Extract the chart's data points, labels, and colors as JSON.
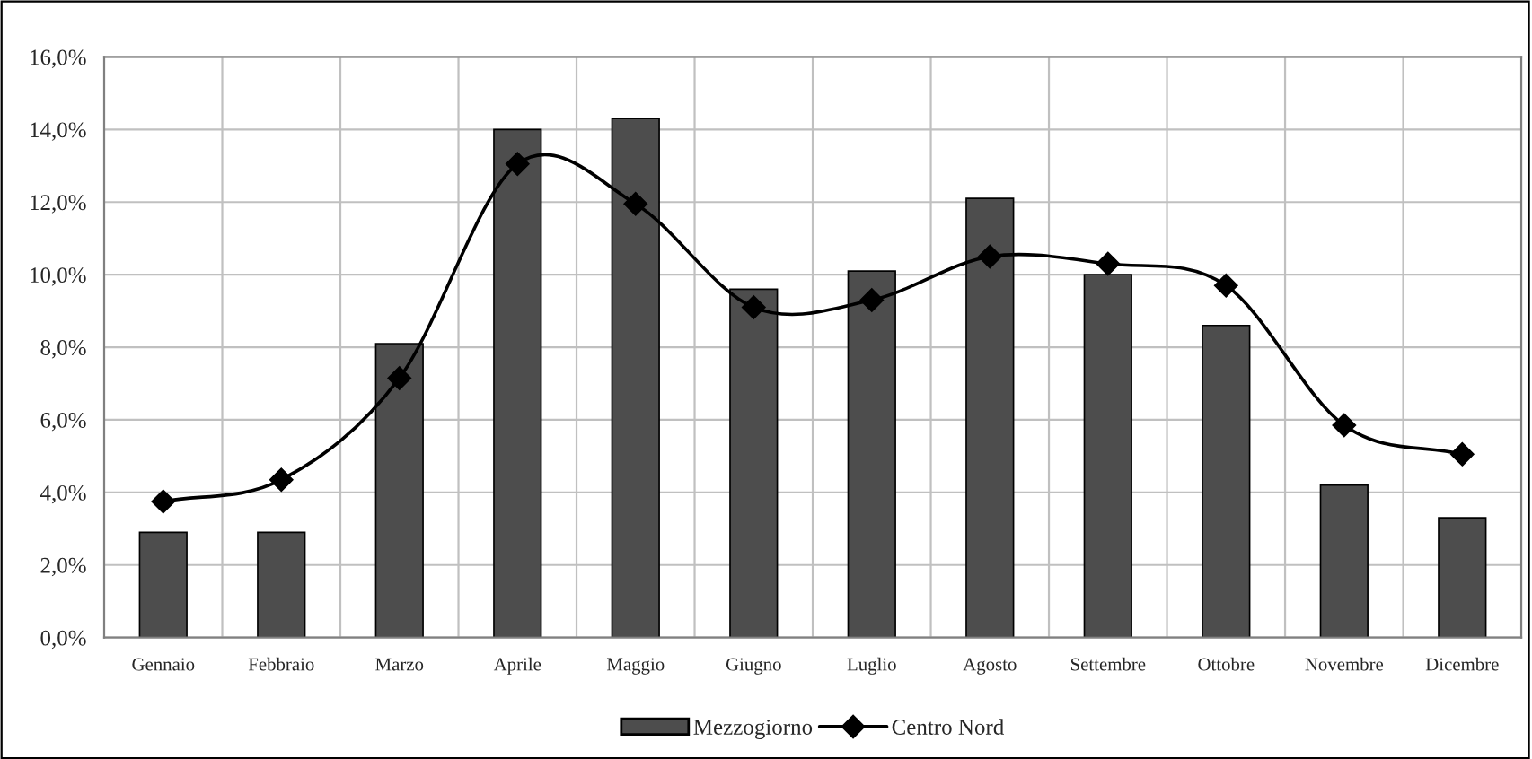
{
  "chart_data": {
    "type": "bar",
    "categories": [
      "Gennaio",
      "Febbraio",
      "Marzo",
      "Aprile",
      "Maggio",
      "Giugno",
      "Luglio",
      "Agosto",
      "Settembre",
      "Ottobre",
      "Novembre",
      "Dicembre"
    ],
    "series": [
      {
        "name": "Mezzogiorno",
        "color": "#4d4d4d",
        "values": [
          2.9,
          2.9,
          8.1,
          14.0,
          14.3,
          9.6,
          10.1,
          12.1,
          10.0,
          8.6,
          4.2,
          3.3
        ]
      },
      {
        "name": "Centro Nord",
        "type": "line",
        "color": "#000000",
        "marker": "diamond",
        "values": [
          3.75,
          4.35,
          7.15,
          13.05,
          11.95,
          9.1,
          9.3,
          10.5,
          10.3,
          9.7,
          5.85,
          5.05
        ]
      }
    ],
    "ylim": [
      0,
      16
    ],
    "yticks": [
      {
        "value": 0,
        "label": "0,0%"
      },
      {
        "value": 2,
        "label": "2,0%"
      },
      {
        "value": 4,
        "label": "4,0%"
      },
      {
        "value": 6,
        "label": "6,0%"
      },
      {
        "value": 8,
        "label": "8,0%"
      },
      {
        "value": 10,
        "label": "10,0%"
      },
      {
        "value": 12,
        "label": "12,0%"
      },
      {
        "value": 14,
        "label": "14,0%"
      },
      {
        "value": 16,
        "label": "16,0%"
      }
    ],
    "grid": true,
    "legend": "bottom"
  }
}
